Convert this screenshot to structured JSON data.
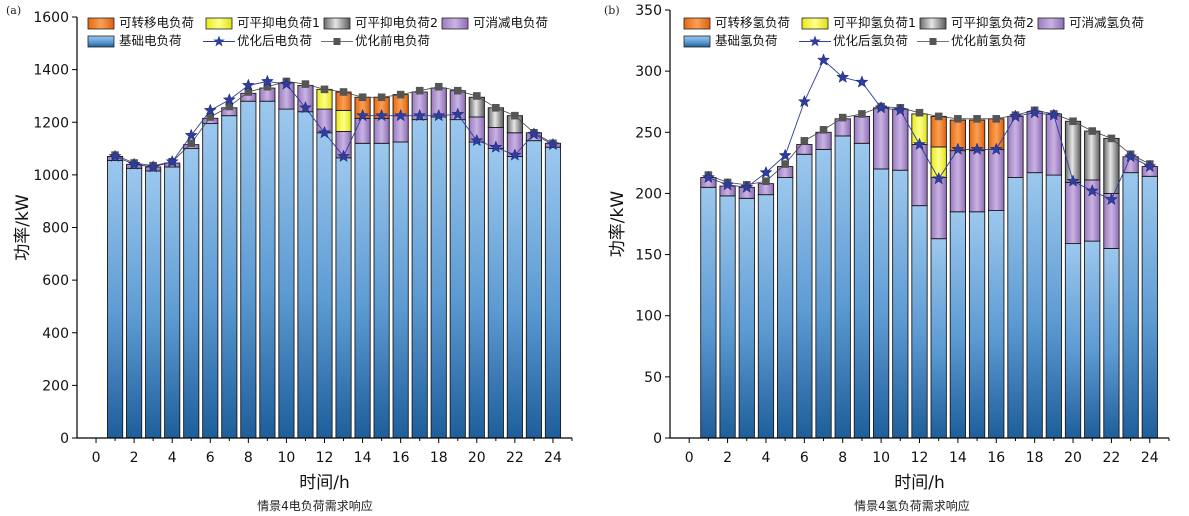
{
  "chart_data": [
    {
      "type": "bar",
      "panel_label": "(a)",
      "caption": "情景4电负荷需求响应",
      "xlabel": "时间/h",
      "ylabel": "功率/kW",
      "xlim": [
        -1,
        25
      ],
      "ylim": [
        0,
        1600
      ],
      "xticks": [
        0,
        2,
        4,
        6,
        8,
        10,
        12,
        14,
        16,
        18,
        20,
        22,
        24
      ],
      "yticks": [
        0,
        200,
        400,
        600,
        800,
        1000,
        1200,
        1400,
        1600
      ],
      "stacked": true,
      "legend": {
        "position": "top-left",
        "entries": [
          "可转移电负荷",
          "可平抑电负荷1",
          "可平抑电负荷2",
          "可消减电负荷",
          "基础电负荷",
          "优化后电负荷",
          "优化前电负荷"
        ]
      },
      "x": [
        1,
        2,
        3,
        4,
        5,
        6,
        7,
        8,
        9,
        10,
        11,
        12,
        13,
        14,
        15,
        16,
        17,
        18,
        19,
        20,
        21,
        22,
        23,
        24
      ],
      "series": [
        {
          "name": "基础电负荷",
          "kind": "bar",
          "color": "#6FA8DC",
          "values": [
            1055,
            1025,
            1015,
            1030,
            1100,
            1195,
            1225,
            1280,
            1280,
            1250,
            1240,
            1160,
            1065,
            1120,
            1120,
            1125,
            1210,
            1220,
            1210,
            1125,
            1100,
            1070,
            1130,
            1105
          ]
        },
        {
          "name": "可消减电负荷",
          "kind": "bar",
          "color": "#9E7CC1",
          "values": [
            15,
            15,
            15,
            15,
            15,
            20,
            30,
            30,
            50,
            100,
            100,
            90,
            100,
            95,
            95,
            100,
            105,
            110,
            110,
            95,
            80,
            90,
            30,
            15
          ]
        },
        {
          "name": "可平抑电负荷1",
          "kind": "bar",
          "color": "#F2F230",
          "values": [
            0,
            0,
            0,
            0,
            0,
            0,
            0,
            0,
            0,
            0,
            0,
            75,
            80,
            0,
            0,
            0,
            0,
            0,
            0,
            0,
            0,
            0,
            0,
            0
          ]
        },
        {
          "name": "可平抑电负荷2",
          "kind": "bar",
          "color": "#9E9E9E",
          "values": [
            0,
            0,
            0,
            0,
            0,
            0,
            0,
            0,
            0,
            0,
            0,
            0,
            0,
            0,
            0,
            0,
            0,
            0,
            0,
            75,
            75,
            65,
            0,
            0
          ]
        },
        {
          "name": "可转移电负荷",
          "kind": "bar",
          "color": "#F07A1A",
          "values": [
            0,
            0,
            0,
            0,
            0,
            0,
            0,
            0,
            0,
            0,
            0,
            0,
            70,
            80,
            80,
            80,
            0,
            0,
            0,
            0,
            0,
            0,
            0,
            0
          ]
        },
        {
          "name": "优化前电负荷",
          "kind": "line",
          "color": "#555555",
          "marker": "square",
          "values": [
            1075,
            1045,
            1035,
            1050,
            1120,
            1220,
            1260,
            1315,
            1335,
            1355,
            1345,
            1325,
            1315,
            1295,
            1295,
            1305,
            1320,
            1335,
            1320,
            1300,
            1255,
            1225,
            1160,
            1120
          ]
        },
        {
          "name": "优化后电负荷",
          "kind": "line",
          "color": "#2E3D9E",
          "marker": "star",
          "values": [
            1070,
            1040,
            1030,
            1050,
            1150,
            1245,
            1285,
            1340,
            1355,
            1345,
            1255,
            1160,
            1070,
            1225,
            1225,
            1225,
            1225,
            1225,
            1230,
            1130,
            1105,
            1075,
            1155,
            1115
          ]
        }
      ]
    },
    {
      "type": "bar",
      "panel_label": "(b)",
      "caption": "情景4氢负荷需求响应",
      "xlabel": "时间/h",
      "ylabel": "功率/kW",
      "xlim": [
        -1,
        25
      ],
      "ylim": [
        0,
        350
      ],
      "xticks": [
        0,
        2,
        4,
        6,
        8,
        10,
        12,
        14,
        16,
        18,
        20,
        22,
        24
      ],
      "yticks": [
        0,
        50,
        100,
        150,
        200,
        250,
        300,
        350
      ],
      "stacked": true,
      "legend": {
        "position": "top-left",
        "entries": [
          "可转移氢负荷",
          "可平抑氢负荷1",
          "可平抑氢负荷2",
          "可消减氢负荷",
          "基础氢负荷",
          "优化后氢负荷",
          "优化前氢负荷"
        ]
      },
      "x": [
        1,
        2,
        3,
        4,
        5,
        6,
        7,
        8,
        9,
        10,
        11,
        12,
        13,
        14,
        15,
        16,
        17,
        18,
        19,
        20,
        21,
        22,
        23,
        24
      ],
      "series": [
        {
          "name": "基础氢负荷",
          "kind": "bar",
          "color": "#6FA8DC",
          "values": [
            205,
            198,
            196,
            199,
            213,
            232,
            236,
            247,
            241,
            220,
            219,
            190,
            163,
            185,
            185,
            186,
            213,
            217,
            215,
            159,
            161,
            155,
            217,
            214
          ]
        },
        {
          "name": "可消减氢负荷",
          "kind": "bar",
          "color": "#9E7CC1",
          "values": [
            8,
            8,
            9,
            9,
            9,
            8,
            14,
            14,
            22,
            50,
            50,
            50,
            50,
            50,
            50,
            50,
            50,
            50,
            50,
            50,
            50,
            45,
            13,
            8
          ]
        },
        {
          "name": "可平抑氢负荷1",
          "kind": "bar",
          "color": "#F2F230",
          "values": [
            0,
            0,
            0,
            0,
            0,
            0,
            0,
            0,
            0,
            0,
            0,
            25,
            25,
            0,
            0,
            0,
            0,
            0,
            0,
            0,
            0,
            0,
            0,
            0
          ]
        },
        {
          "name": "可平抑氢负荷2",
          "kind": "bar",
          "color": "#9E9E9E",
          "values": [
            0,
            0,
            0,
            0,
            0,
            0,
            0,
            0,
            0,
            0,
            0,
            0,
            0,
            0,
            0,
            0,
            0,
            0,
            0,
            50,
            40,
            45,
            0,
            0
          ]
        },
        {
          "name": "可转移氢负荷",
          "kind": "bar",
          "color": "#F07A1A",
          "values": [
            0,
            0,
            0,
            0,
            0,
            0,
            0,
            0,
            0,
            0,
            0,
            0,
            25,
            25,
            25,
            25,
            0,
            0,
            0,
            0,
            0,
            0,
            0,
            0
          ]
        },
        {
          "name": "优化前氢负荷",
          "kind": "line",
          "color": "#555555",
          "marker": "square",
          "values": [
            215,
            209,
            207,
            210,
            224,
            243,
            252,
            262,
            265,
            271,
            270,
            266,
            263,
            261,
            261,
            261,
            264,
            268,
            265,
            259,
            251,
            245,
            232,
            224
          ]
        },
        {
          "name": "优化后氢负荷",
          "kind": "line",
          "color": "#2E3D9E",
          "marker": "star",
          "values": [
            213,
            207,
            205,
            217,
            231,
            275,
            309,
            295,
            291,
            270,
            268,
            240,
            212,
            236,
            236,
            236,
            263,
            266,
            264,
            210,
            202,
            195,
            230,
            222
          ]
        }
      ]
    }
  ]
}
